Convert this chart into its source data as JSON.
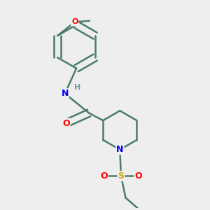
{
  "background_color": "#eeeeee",
  "bond_color": "#4a7c6a",
  "atom_colors": {
    "O": "#ff0000",
    "N": "#0000ee",
    "S": "#ccaa00",
    "H": "#7799aa"
  },
  "bond_width": 1.8,
  "figsize": [
    3.0,
    3.0
  ],
  "dpi": 100
}
